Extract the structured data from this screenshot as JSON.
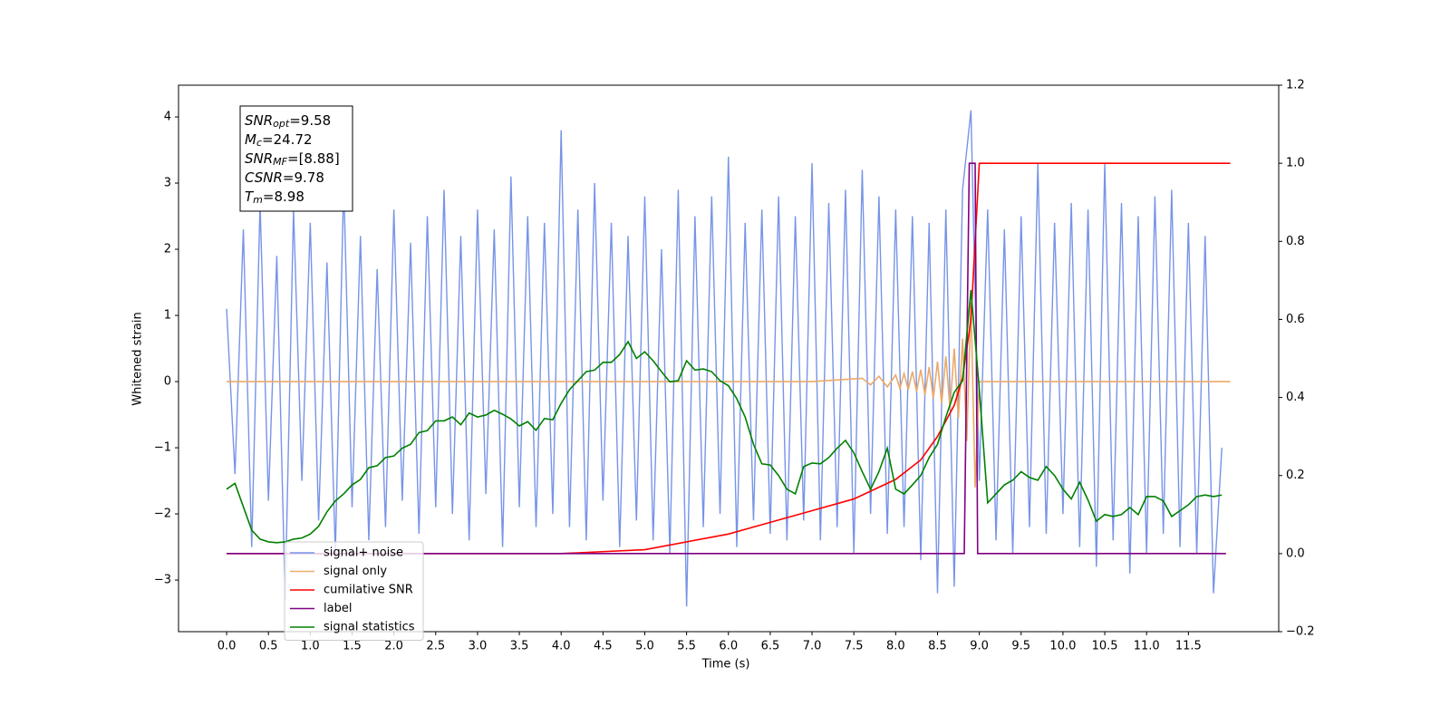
{
  "chart_data": {
    "type": "line",
    "x_label": "Time (s)",
    "y_label": "Whitened strain",
    "xlim": [
      -0.575,
      12.58
    ],
    "ylim": [
      -3.78,
      4.48
    ],
    "y2lim": [
      -0.2,
      1.2
    ],
    "xticks": [
      {
        "value": 0,
        "label": "0.0"
      },
      0.5,
      {
        "value": 1,
        "label": "1.0"
      },
      1.5,
      {
        "value": 2,
        "label": "2.0"
      },
      2.5,
      {
        "value": 3,
        "label": "3.0"
      },
      3.5,
      {
        "value": 4,
        "label": "4.0"
      },
      4.5,
      {
        "value": 5,
        "label": "5.0"
      },
      5.5,
      {
        "value": 6,
        "label": "6.0"
      },
      6.5,
      {
        "value": 7,
        "label": "7.0"
      },
      7.5,
      {
        "value": 8,
        "label": "8.0"
      },
      8.5,
      {
        "value": 9,
        "label": "9.0"
      },
      9.5,
      {
        "value": 10,
        "label": "10.0"
      },
      10.5,
      {
        "value": 11,
        "label": "11.0"
      },
      11.5
    ],
    "yticks": [
      {
        "value": -3,
        "label": "−3"
      },
      {
        "value": -2,
        "label": "−2"
      },
      {
        "value": -1,
        "label": "−1"
      },
      0,
      1,
      2,
      3,
      4
    ],
    "y2ticks": [
      {
        "value": -0.2,
        "label": "−0.2"
      },
      {
        "value": 0,
        "label": "0.0"
      },
      0.2,
      0.4,
      0.6,
      0.8,
      {
        "value": 1,
        "label": "1.0"
      },
      1.2
    ],
    "legend": "lower left",
    "annotation": [
      {
        "symbol": "SNR",
        "sub": "opt",
        "text": "=9.58"
      },
      {
        "symbol": "M",
        "sub": "c",
        "text": "=24.72"
      },
      {
        "symbol": "SNR",
        "sub": "MF",
        "text": "=[8.88]"
      },
      {
        "symbol": "CSNR",
        "sub": "",
        "text": "=9.78"
      },
      {
        "symbol": "T",
        "sub": "m",
        "text": "=8.98"
      }
    ],
    "series": [
      {
        "name": "signal+ noise",
        "color": "#7794e6",
        "x": [
          0,
          0.1,
          0.2,
          0.3,
          0.4,
          0.5,
          0.6,
          0.7,
          0.8,
          0.9,
          1,
          1.1,
          1.2,
          1.3,
          1.4,
          1.5,
          1.6,
          1.7,
          1.8,
          1.9,
          2,
          2.1,
          2.2,
          2.3,
          2.4,
          2.5,
          2.6,
          2.7,
          2.8,
          2.9,
          3,
          3.1,
          3.2,
          3.3,
          3.4,
          3.5,
          3.6,
          3.7,
          3.8,
          3.9,
          4,
          4.1,
          4.2,
          4.3,
          4.4,
          4.5,
          4.6,
          4.7,
          4.8,
          4.9,
          5,
          5.1,
          5.2,
          5.3,
          5.4,
          5.5,
          5.6,
          5.7,
          5.8,
          5.9,
          6,
          6.1,
          6.2,
          6.3,
          6.4,
          6.5,
          6.6,
          6.7,
          6.8,
          6.9,
          7,
          7.1,
          7.2,
          7.3,
          7.4,
          7.5,
          7.6,
          7.7,
          7.8,
          7.9,
          8,
          8.1,
          8.2,
          8.3,
          8.4,
          8.5,
          8.6,
          8.7,
          8.8,
          8.9,
          9,
          9.1,
          9.2,
          9.3,
          9.4,
          9.5,
          9.6,
          9.7,
          9.8,
          9.9,
          10,
          10.1,
          10.2,
          10.3,
          10.4,
          10.5,
          10.6,
          10.7,
          10.8,
          10.9,
          11,
          11.1,
          11.2,
          11.3,
          11.4,
          11.5,
          11.6,
          11.7,
          11.8,
          11.9
        ],
        "values": [
          1.1,
          -1.4,
          2.3,
          -2.5,
          2.7,
          -1.8,
          1.9,
          -3.3,
          2.6,
          -1.5,
          2.4,
          -2.1,
          1.8,
          -2.6,
          3.0,
          -1.9,
          2.2,
          -2.4,
          1.7,
          -2.2,
          2.6,
          -1.8,
          2.1,
          -2.3,
          2.5,
          -1.9,
          2.9,
          -2.0,
          2.2,
          -2.4,
          2.6,
          -1.7,
          2.3,
          -2.5,
          3.1,
          -1.9,
          2.5,
          -2.2,
          2.4,
          -2.0,
          3.8,
          -2.2,
          2.6,
          -2.4,
          3.0,
          -1.8,
          2.4,
          -2.5,
          2.2,
          -2.1,
          2.8,
          -2.4,
          2.0,
          -2.6,
          2.9,
          -3.4,
          2.5,
          -2.2,
          2.8,
          -2.0,
          3.4,
          -2.5,
          2.4,
          -2.1,
          2.6,
          -2.3,
          2.8,
          -2.4,
          2.5,
          -2.1,
          3.3,
          -2.4,
          2.7,
          -2.2,
          2.9,
          -2.6,
          3.2,
          -2.0,
          2.8,
          -2.3,
          2.6,
          -2.2,
          2.5,
          -2.7,
          2.4,
          -3.2,
          2.6,
          -3.1,
          2.9,
          4.1,
          -1.5,
          2.6,
          -2.4,
          2.3,
          -2.6,
          2.5,
          -2.2,
          3.3,
          -2.3,
          2.4,
          -2.0,
          2.7,
          -2.5,
          2.6,
          -2.8,
          3.3,
          -2.4,
          2.7,
          -2.9,
          2.5,
          -2.6,
          2.8,
          -2.3,
          2.9,
          -2.5,
          2.4,
          -2.6,
          2.2,
          -3.2,
          -1.0
        ]
      },
      {
        "name": "signal only",
        "color": "#e9aa6a",
        "x": [
          0,
          5.5,
          7,
          7.6,
          7.7,
          7.8,
          7.9,
          8,
          8.05,
          8.1,
          8.15,
          8.2,
          8.25,
          8.3,
          8.35,
          8.4,
          8.45,
          8.5,
          8.55,
          8.6,
          8.65,
          8.7,
          8.75,
          8.8,
          8.85,
          8.9,
          8.95,
          9,
          12
        ],
        "values": [
          0,
          0,
          0,
          0.05,
          -0.05,
          0.08,
          -0.08,
          0.1,
          -0.1,
          0.12,
          -0.12,
          0.15,
          -0.15,
          0.18,
          -0.2,
          0.22,
          -0.25,
          0.3,
          -0.33,
          0.38,
          -0.42,
          0.5,
          -0.55,
          0.65,
          -0.9,
          1.2,
          -1.6,
          0,
          0
        ]
      },
      {
        "name": "cumilative SNR",
        "color": "#ff0000",
        "axis": "y2",
        "x": [
          0,
          4,
          5,
          6,
          6.5,
          7,
          7.5,
          8,
          8.3,
          8.5,
          8.7,
          8.8,
          8.9,
          9,
          12
        ],
        "values": [
          0,
          0,
          0.01,
          0.05,
          0.08,
          0.11,
          0.14,
          0.19,
          0.24,
          0.3,
          0.38,
          0.45,
          0.6,
          1,
          1
        ]
      },
      {
        "name": "label",
        "color": "#800080",
        "axis": "y2",
        "x": [
          0,
          8.82,
          8.88,
          8.95,
          8.98,
          11.95
        ],
        "values": [
          0,
          0,
          1,
          1,
          0,
          0
        ]
      },
      {
        "name": "signal statistics",
        "color": "#008000",
        "axis": "y2",
        "x": [
          0,
          0.1,
          0.2,
          0.3,
          0.4,
          0.5,
          0.6,
          0.7,
          0.8,
          0.9,
          1,
          1.1,
          1.2,
          1.3,
          1.4,
          1.5,
          1.6,
          1.7,
          1.8,
          1.9,
          2,
          2.1,
          2.2,
          2.3,
          2.4,
          2.5,
          2.6,
          2.7,
          2.8,
          2.9,
          3,
          3.1,
          3.2,
          3.3,
          3.4,
          3.5,
          3.6,
          3.7,
          3.8,
          3.9,
          4,
          4.1,
          4.2,
          4.3,
          4.4,
          4.5,
          4.6,
          4.7,
          4.8,
          4.9,
          5,
          5.1,
          5.2,
          5.3,
          5.4,
          5.5,
          5.6,
          5.7,
          5.8,
          5.9,
          6,
          6.1,
          6.2,
          6.3,
          6.4,
          6.5,
          6.6,
          6.7,
          6.8,
          6.9,
          7,
          7.1,
          7.2,
          7.3,
          7.4,
          7.5,
          7.6,
          7.7,
          7.8,
          7.9,
          8,
          8.1,
          8.2,
          8.3,
          8.4,
          8.5,
          8.6,
          8.7,
          8.8,
          8.9,
          9,
          9.1,
          9.2,
          9.3,
          9.4,
          9.5,
          9.6,
          9.7,
          9.8,
          9.9,
          10,
          10.1,
          10.2,
          10.3,
          10.4,
          10.5,
          10.6,
          10.7,
          10.8,
          10.9,
          11,
          11.1,
          11.2,
          11.3,
          11.4,
          11.5,
          11.6,
          11.7,
          11.8,
          11.9
        ],
        "values": [
          0.165,
          0.18,
          0.12,
          0.06,
          0.037,
          0.03,
          0.028,
          0.03,
          0.037,
          0.04,
          0.05,
          0.07,
          0.107,
          0.135,
          0.153,
          0.176,
          0.19,
          0.22,
          0.225,
          0.246,
          0.25,
          0.27,
          0.28,
          0.31,
          0.315,
          0.34,
          0.34,
          0.35,
          0.33,
          0.36,
          0.35,
          0.355,
          0.367,
          0.357,
          0.345,
          0.327,
          0.338,
          0.316,
          0.346,
          0.343,
          0.385,
          0.42,
          0.443,
          0.466,
          0.47,
          0.49,
          0.49,
          0.51,
          0.543,
          0.5,
          0.517,
          0.494,
          0.466,
          0.44,
          0.443,
          0.494,
          0.47,
          0.473,
          0.466,
          0.443,
          0.43,
          0.397,
          0.35,
          0.28,
          0.23,
          0.227,
          0.2,
          0.165,
          0.153,
          0.223,
          0.232,
          0.23,
          0.246,
          0.27,
          0.29,
          0.258,
          0.21,
          0.165,
          0.21,
          0.27,
          0.165,
          0.153,
          0.176,
          0.2,
          0.246,
          0.28,
          0.35,
          0.413,
          0.443,
          0.675,
          0.42,
          0.13,
          0.153,
          0.176,
          0.188,
          0.21,
          0.195,
          0.188,
          0.223,
          0.2,
          0.165,
          0.14,
          0.183,
          0.137,
          0.083,
          0.1,
          0.095,
          0.1,
          0.118,
          0.1,
          0.146,
          0.146,
          0.135,
          0.095,
          0.11,
          0.125,
          0.146,
          0.15,
          0.146,
          0.15
        ]
      }
    ]
  }
}
